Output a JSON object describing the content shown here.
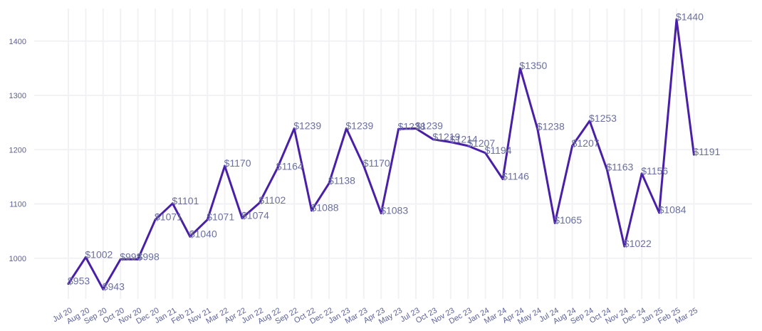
{
  "chart_data": {
    "type": "line",
    "title": "",
    "xlabel": "",
    "ylabel": "",
    "ylim": [
      925,
      1460
    ],
    "yticks": [
      1000,
      1100,
      1200,
      1300,
      1400
    ],
    "grid": true,
    "line_color": "#4a1fa8",
    "categories": [
      "Jul 20",
      "Aug 20",
      "Sep 20",
      "Oct 20",
      "Nov 20",
      "Dec 20",
      "Jan 21",
      "Feb 21",
      "Nov 21",
      "Mar 22",
      "Apr 22",
      "Jun 22",
      "Aug 22",
      "Sep 22",
      "Oct 22",
      "Dec 22",
      "Jan 23",
      "Mar 23",
      "Apr 23",
      "May 23",
      "Jul 23",
      "Oct 23",
      "Nov 23",
      "Dec 23",
      "Jan 24",
      "Mar 24",
      "Apr 24",
      "May 24",
      "Jul 24",
      "Aug 24",
      "Sep 24",
      "Oct 24",
      "Nov 24",
      "Dec 24",
      "Jan 25",
      "Feb 25",
      "Mar 25"
    ],
    "values": [
      953,
      1002,
      943,
      998,
      998,
      1071,
      1101,
      1040,
      1071,
      1170,
      1074,
      1102,
      1164,
      1239,
      1088,
      1138,
      1239,
      1170,
      1083,
      1238,
      1239,
      1219,
      1214,
      1207,
      1194,
      1146,
      1350,
      1238,
      1065,
      1207,
      1253,
      1163,
      1022,
      1156,
      1084,
      1440,
      1191
    ],
    "data_labels": [
      "$953",
      "$1002",
      "$943",
      "$998",
      "$998",
      "$1071",
      "$1101",
      "$1040",
      "$1071",
      "$1170",
      "$1074",
      "$1102",
      "$1164",
      "$1239",
      "$1088",
      "$1138",
      "$1239",
      "$1170",
      "$1083",
      "$1238",
      "$1239",
      "$1219",
      "$1214",
      "$1207",
      "$1194",
      "$1146",
      "$1350",
      "$1238",
      "$1065",
      "$1207",
      "$1253",
      "$1163",
      "$1022",
      "$1156",
      "$1084",
      "$1440",
      "$1191"
    ]
  }
}
